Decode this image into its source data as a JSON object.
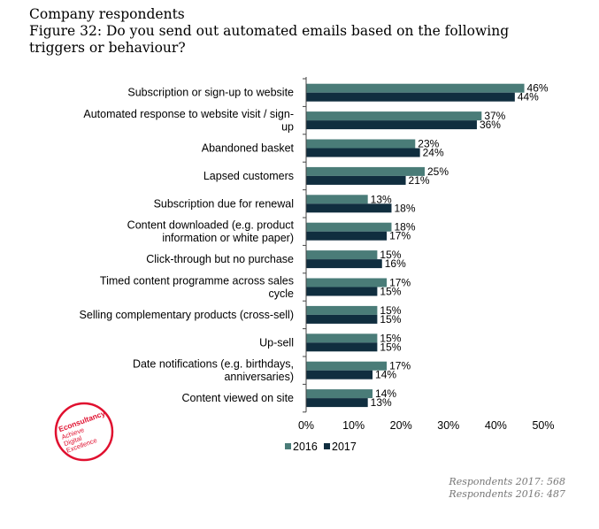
{
  "header": {
    "line1": "Company respondents",
    "line2": "Figure 32: Do you send out automated emails based on the following triggers or behaviour?"
  },
  "colors": {
    "series2016": "#4a7c78",
    "series2017": "#102e3f",
    "logo": "#e0102f"
  },
  "chart_data": {
    "type": "bar",
    "orientation": "horizontal",
    "categories": [
      [
        "Subscription or sign-up to website"
      ],
      [
        "Automated response to website visit / sign-",
        "up"
      ],
      [
        "Abandoned basket"
      ],
      [
        "Lapsed customers"
      ],
      [
        "Subscription due for renewal"
      ],
      [
        "Content downloaded (e.g. product",
        "information or white paper)"
      ],
      [
        "Click-through but no purchase"
      ],
      [
        "Timed content programme across sales",
        "cycle"
      ],
      [
        "Selling complementary products (cross-sell)"
      ],
      [
        "Up-sell"
      ],
      [
        "Date notifications (e.g. birthdays,",
        "anniversaries)"
      ],
      [
        "Content viewed on site"
      ]
    ],
    "series": [
      {
        "name": "2016",
        "values": [
          46,
          37,
          23,
          25,
          13,
          18,
          15,
          17,
          15,
          15,
          17,
          14
        ]
      },
      {
        "name": "2017",
        "values": [
          44,
          36,
          24,
          21,
          18,
          17,
          16,
          15,
          15,
          15,
          14,
          13
        ]
      }
    ],
    "value_suffix": "%",
    "xlim": [
      0,
      50
    ],
    "xticks": [
      "0%",
      "10%",
      "20%",
      "30%",
      "40%",
      "50%"
    ],
    "legend_position": "bottom",
    "grid": false
  },
  "logo": {
    "lines": [
      "Econsultancy",
      "Achieve",
      "Digital",
      "Excellence"
    ]
  },
  "footer": {
    "respondents_2017": "Respondents 2017: 568",
    "respondents_2016": "Respondents 2016: 487"
  }
}
